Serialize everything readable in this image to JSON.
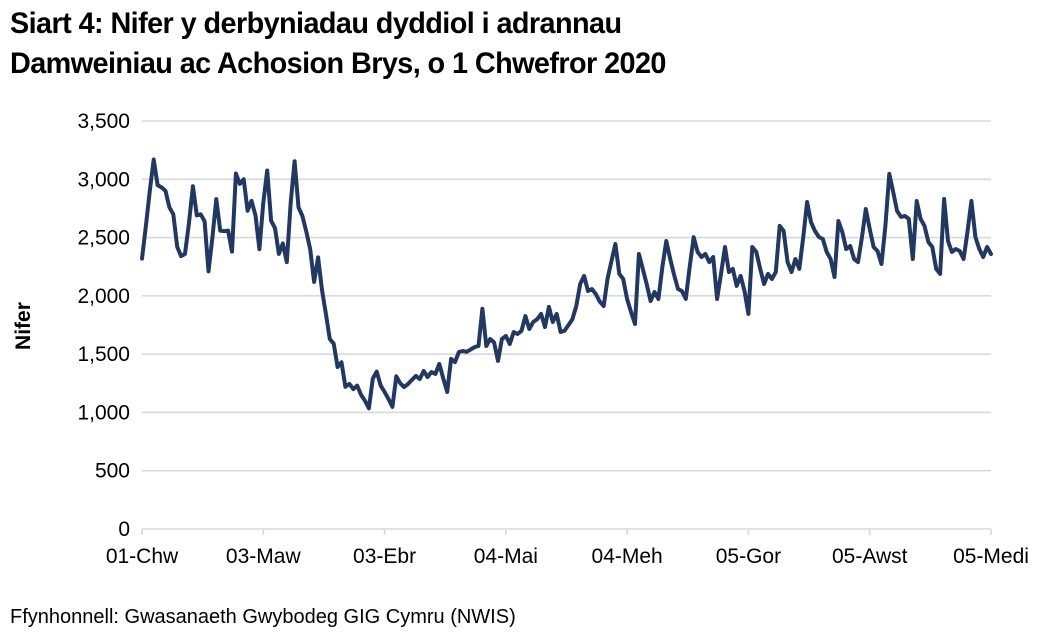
{
  "title": {
    "line1": "Siart 4: Nifer y derbyniadau dyddiol i adrannau",
    "line2": "Damweiniau ac Achosion Brys, o 1 Chwefror 2020"
  },
  "footer": {
    "source": "Ffynhonnell: Gwasanaeth Gwybodeg GIG Cymru (NWIS)"
  },
  "chart_data": {
    "type": "line",
    "title": "Siart 4: Nifer y derbyniadau dyddiol i adrannau Damweiniau ac Achosion Brys, o 1 Chwefror 2020",
    "xlabel": "",
    "ylabel": "Nifer",
    "ylim": [
      0,
      3500
    ],
    "ytick_step": 500,
    "ytick_labels": [
      "0",
      "500",
      "1,000",
      "1,500",
      "2,000",
      "2,500",
      "3,000",
      "3,500"
    ],
    "grid": true,
    "legend": false,
    "line_color": "#1f3864",
    "grid_color": "#d9d9d9",
    "background_color": "#ffffff",
    "xticks": [
      {
        "label": "01-Chw",
        "day": 0
      },
      {
        "label": "03-Maw",
        "day": 31
      },
      {
        "label": "03-Ebr",
        "day": 62
      },
      {
        "label": "04-Mai",
        "day": 93
      },
      {
        "label": "04-Meh",
        "day": 124
      },
      {
        "label": "05-Gor",
        "day": 155
      },
      {
        "label": "05-Awst",
        "day": 186
      },
      {
        "label": "05-Medi",
        "day": 217
      }
    ],
    "values": [
      2320,
      2600,
      2900,
      3170,
      2950,
      2930,
      2900,
      2760,
      2700,
      2420,
      2340,
      2360,
      2620,
      2940,
      2690,
      2700,
      2640,
      2210,
      2500,
      2830,
      2560,
      2555,
      2560,
      2380,
      3050,
      2960,
      3000,
      2730,
      2815,
      2690,
      2400,
      2800,
      3075,
      2645,
      2580,
      2360,
      2450,
      2290,
      2800,
      3155,
      2760,
      2685,
      2550,
      2400,
      2120,
      2330,
      2050,
      1845,
      1630,
      1590,
      1390,
      1430,
      1220,
      1245,
      1200,
      1230,
      1150,
      1100,
      1035,
      1290,
      1350,
      1230,
      1175,
      1115,
      1047,
      1310,
      1250,
      1218,
      1244,
      1280,
      1313,
      1287,
      1356,
      1304,
      1347,
      1330,
      1416,
      1290,
      1175,
      1459,
      1432,
      1518,
      1527,
      1520,
      1540,
      1560,
      1570,
      1890,
      1570,
      1630,
      1600,
      1442,
      1630,
      1656,
      1587,
      1690,
      1673,
      1700,
      1827,
      1716,
      1776,
      1800,
      1845,
      1733,
      1905,
      1776,
      1845,
      1690,
      1700,
      1750,
      1800,
      1913,
      2102,
      2171,
      2042,
      2059,
      2016,
      1950,
      1913,
      2150,
      2300,
      2445,
      2188,
      2145,
      1973,
      1860,
      1759,
      2359,
      2231,
      2100,
      1956,
      2033,
      1973,
      2250,
      2471,
      2316,
      2180,
      2059,
      2042,
      1973,
      2250,
      2503,
      2376,
      2333,
      2359,
      2290,
      2333,
      1973,
      2188,
      2419,
      2205,
      2231,
      2085,
      2171,
      2042,
      1845,
      2419,
      2376,
      2231,
      2102,
      2188,
      2145,
      2205,
      2600,
      2557,
      2290,
      2205,
      2316,
      2231,
      2500,
      2805,
      2633,
      2557,
      2505,
      2488,
      2376,
      2316,
      2162,
      2642,
      2548,
      2402,
      2428,
      2316,
      2290,
      2500,
      2745,
      2574,
      2419,
      2385,
      2273,
      2600,
      3046,
      2891,
      2728,
      2677,
      2685,
      2660,
      2316,
      2814,
      2660,
      2600,
      2462,
      2419,
      2231,
      2188,
      2831,
      2471,
      2376,
      2402,
      2385,
      2316,
      2550,
      2814,
      2505,
      2402,
      2333,
      2419,
      2359
    ]
  }
}
